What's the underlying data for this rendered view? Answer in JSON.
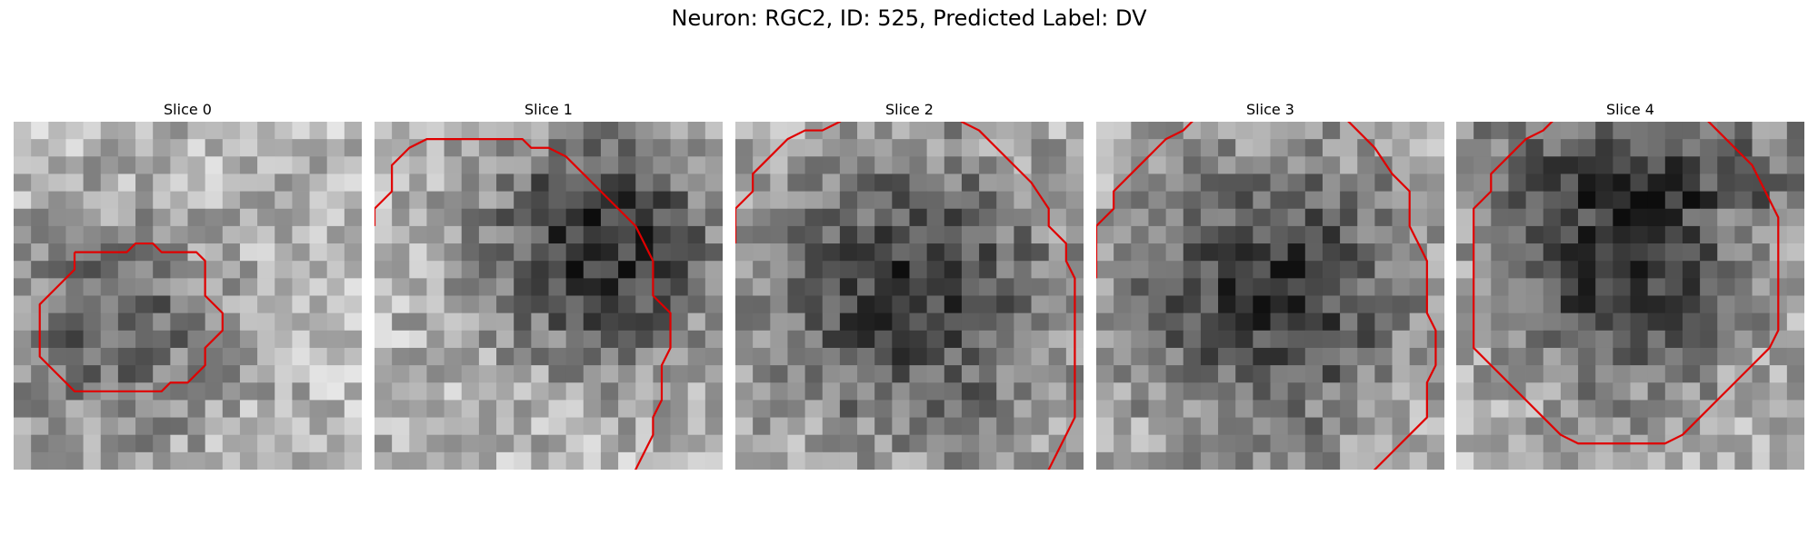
{
  "figure": {
    "title": "Neuron: RGC2, ID: 525, Predicted Label: DV"
  },
  "panels": [
    {
      "title": "Slice 0",
      "dark_region": "lower-left",
      "contour": [
        [
          3.5,
          7.5
        ],
        [
          6.5,
          7.5
        ],
        [
          7,
          7
        ],
        [
          8,
          7
        ],
        [
          8.5,
          7.5
        ],
        [
          10.5,
          7.5
        ],
        [
          11,
          8
        ],
        [
          11,
          10
        ],
        [
          12,
          11
        ],
        [
          12,
          12
        ],
        [
          11,
          13
        ],
        [
          11,
          14
        ],
        [
          10.5,
          14.5
        ],
        [
          10,
          15
        ],
        [
          9,
          15
        ],
        [
          8.5,
          15.5
        ],
        [
          3.5,
          15.5
        ],
        [
          2,
          14
        ],
        [
          1.5,
          13.5
        ],
        [
          1.5,
          10.5
        ],
        [
          2,
          10
        ],
        [
          3.5,
          8.5
        ],
        [
          3.5,
          7.5
        ]
      ]
    },
    {
      "title": "Slice 1",
      "dark_region": "upper-right",
      "contour": [
        [
          0,
          6
        ],
        [
          0,
          5
        ],
        [
          1,
          4
        ],
        [
          1,
          2.5
        ],
        [
          2,
          1.5
        ],
        [
          3,
          1
        ],
        [
          8.5,
          1
        ],
        [
          9,
          1.5
        ],
        [
          10,
          1.5
        ],
        [
          11,
          2
        ],
        [
          12,
          3
        ],
        [
          13,
          4
        ],
        [
          14,
          5
        ],
        [
          15,
          6
        ],
        [
          15.5,
          7
        ],
        [
          16,
          8
        ],
        [
          16,
          10
        ],
        [
          17,
          11
        ],
        [
          17,
          13
        ],
        [
          16.5,
          14
        ],
        [
          16.5,
          16
        ],
        [
          16,
          17
        ],
        [
          16,
          18
        ],
        [
          15.5,
          19
        ],
        [
          15,
          20
        ],
        [
          15,
          21.5
        ]
      ]
    },
    {
      "title": "Slice 2",
      "dark_region": "center",
      "contour": [
        [
          0,
          7
        ],
        [
          0,
          5
        ],
        [
          1,
          4
        ],
        [
          1,
          3
        ],
        [
          2,
          2
        ],
        [
          3,
          1
        ],
        [
          4,
          0.5
        ],
        [
          5,
          0.5
        ],
        [
          6,
          0
        ],
        [
          6.5,
          -0.5
        ],
        [
          12.5,
          -0.5
        ],
        [
          13,
          0
        ],
        [
          14,
          0.5
        ],
        [
          15,
          1.5
        ],
        [
          16,
          2.5
        ],
        [
          17,
          3.5
        ],
        [
          18,
          5
        ],
        [
          18,
          6
        ],
        [
          19,
          7
        ],
        [
          19,
          8
        ],
        [
          19.5,
          9
        ],
        [
          19.5,
          17
        ],
        [
          19,
          18
        ],
        [
          18.5,
          19
        ],
        [
          18,
          20
        ],
        [
          17,
          21
        ],
        [
          16,
          22
        ],
        [
          15,
          23
        ],
        [
          14,
          24
        ]
      ]
    },
    {
      "title": "Slice 3",
      "dark_region": "center",
      "contour": [
        [
          0,
          9
        ],
        [
          0,
          6
        ],
        [
          1,
          5
        ],
        [
          1,
          4
        ],
        [
          2,
          3
        ],
        [
          3,
          2
        ],
        [
          4,
          1
        ],
        [
          5,
          0.5
        ],
        [
          5.5,
          0
        ],
        [
          6,
          -0.5
        ],
        [
          14,
          -0.5
        ],
        [
          14.5,
          0
        ],
        [
          15,
          0.5
        ],
        [
          16,
          1.5
        ],
        [
          17,
          3
        ],
        [
          18,
          4
        ],
        [
          18,
          6
        ],
        [
          18.5,
          7
        ],
        [
          19,
          8
        ],
        [
          19,
          11
        ],
        [
          19.5,
          12
        ],
        [
          19.5,
          14
        ],
        [
          19,
          15
        ],
        [
          19,
          17
        ],
        [
          18,
          18
        ],
        [
          17,
          19
        ],
        [
          16,
          20
        ],
        [
          15,
          21
        ],
        [
          14,
          22
        ]
      ]
    },
    {
      "title": "Slice 4",
      "dark_region": "upper-center",
      "contour": [
        [
          1,
          8
        ],
        [
          1,
          5
        ],
        [
          2,
          4
        ],
        [
          2,
          3
        ],
        [
          3,
          2
        ],
        [
          4,
          1
        ],
        [
          5,
          0.5
        ],
        [
          5.5,
          0
        ],
        [
          6,
          -0.5
        ],
        [
          14,
          -0.5
        ],
        [
          14.5,
          0
        ],
        [
          15,
          0.5
        ],
        [
          16,
          1.5
        ],
        [
          17,
          2.5
        ],
        [
          17.5,
          3.5
        ],
        [
          18,
          4.5
        ],
        [
          18.5,
          5.5
        ],
        [
          18.5,
          12
        ],
        [
          18,
          13
        ],
        [
          17,
          14
        ],
        [
          16,
          15
        ],
        [
          15,
          16
        ],
        [
          14,
          17
        ],
        [
          13,
          18
        ],
        [
          12,
          18.5
        ],
        [
          7,
          18.5
        ],
        [
          6,
          18
        ],
        [
          5,
          17
        ],
        [
          4,
          16
        ],
        [
          3,
          15
        ],
        [
          2,
          14
        ],
        [
          1,
          13
        ],
        [
          1,
          10
        ],
        [
          1,
          8
        ]
      ]
    }
  ]
}
